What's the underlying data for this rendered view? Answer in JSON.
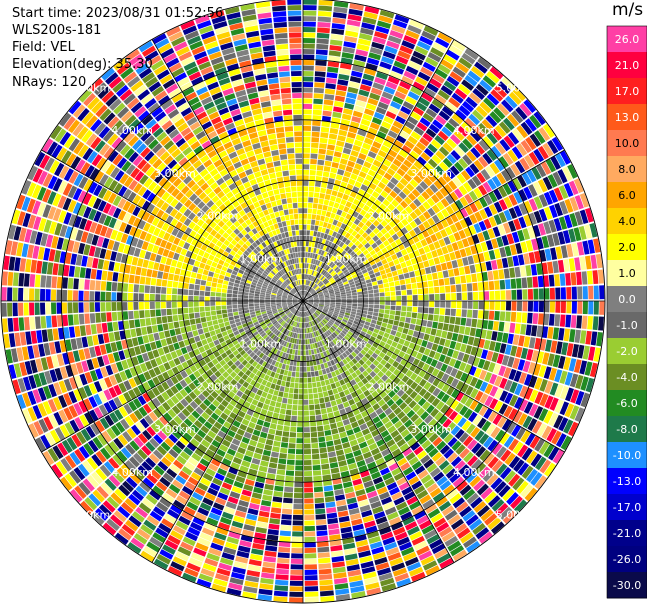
{
  "info": {
    "start_time": "Start time: 2023/08/31 01:52:56",
    "site": "WLS200s-181",
    "field": "Field: VEL",
    "elevation": "Elevation(deg): 35.30",
    "nrays": "NRays: 120"
  },
  "chart_data": {
    "type": "heatmap",
    "projection": "PPI polar",
    "field": "VEL",
    "nrays": 120,
    "range_rings_km": [
      1.0,
      2.0,
      3.0,
      4.0,
      5.0
    ],
    "range_labels": [
      "1.00km",
      "2.00km",
      "3.00km",
      "4.00km",
      "5.00km"
    ],
    "max_range_km": 5.0,
    "colorbar": {
      "unit": "m/s",
      "tick_labels": [
        "26.0",
        "21.0",
        "17.0",
        "13.0",
        "10.0",
        "8.0",
        "6.0",
        "4.0",
        "2.0",
        "1.0",
        "0.0",
        "-1.0",
        "-2.0",
        "-4.0",
        "-6.0",
        "-8.0",
        "-10.0",
        "-13.0",
        "-17.0",
        "-21.0",
        "-26.0",
        "-30.0"
      ],
      "colors": [
        "#ff3fa5",
        "#ff003f",
        "#ff1f1f",
        "#ff5a1a",
        "#ff7a50",
        "#ffaa60",
        "#ffa500",
        "#ffd200",
        "#ffff00",
        "#ffffa0",
        "#7f7f7f",
        "#696969",
        "#9acd32",
        "#6b8e23",
        "#228b22",
        "#1e7a4a",
        "#1e90ff",
        "#0000ff",
        "#0000cd",
        "#00008b",
        "#000080",
        "#0a0a4a"
      ]
    },
    "pattern": {
      "center_core": "gray ~0 m/s within ~1.2 km",
      "north": "yellow/orange positive 2 to 6 m/s, 1-3 km",
      "south": "green negative -2 to -6 m/s, 1-3 km",
      "outer": "noisy mixed colors beyond ~3 km"
    }
  }
}
